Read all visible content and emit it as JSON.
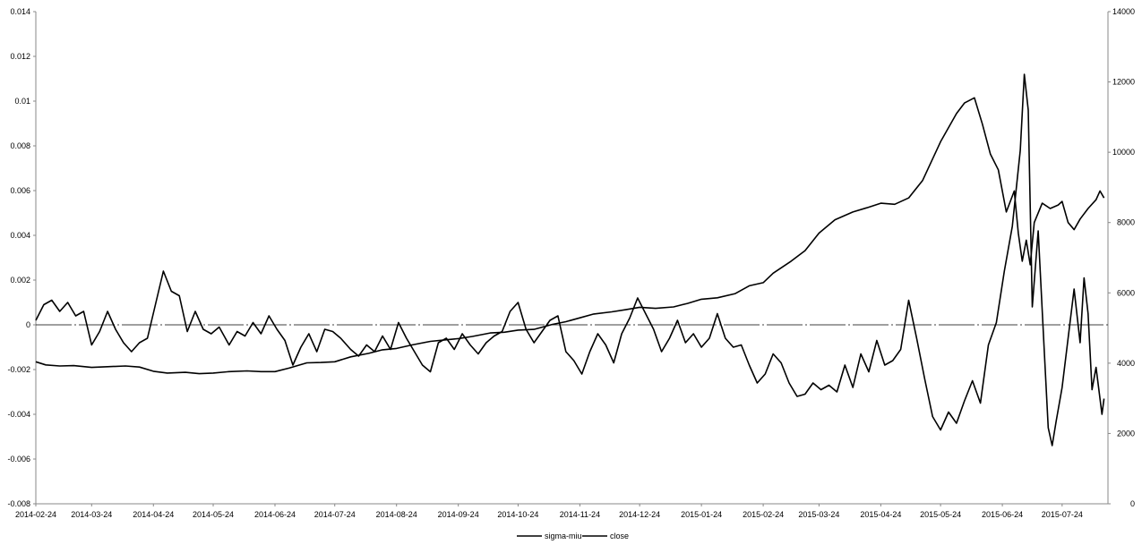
{
  "chart_data": {
    "type": "line",
    "title": "",
    "xlabel": "",
    "ylabel": "",
    "y_left_lim": [
      -0.008,
      0.014
    ],
    "y_left_ticks": [
      "-0.008",
      "-0.006",
      "-0.004",
      "-0.002",
      "0",
      "0.002",
      "0.004",
      "0.006",
      "0.008",
      "0.01",
      "0.012",
      "0.014"
    ],
    "y_right_lim": [
      0,
      14000
    ],
    "y_right_ticks": [
      "0",
      "2000",
      "4000",
      "6000",
      "8000",
      "10000",
      "12000",
      "14000"
    ],
    "x_ticks": [
      "2014-02-24",
      "2014-03-24",
      "2014-04-24",
      "2014-05-24",
      "2014-06-24",
      "2014-07-24",
      "2014-08-24",
      "2014-09-24",
      "2014-10-24",
      "2014-11-24",
      "2014-12-24",
      "2015-01-24",
      "2015-02-24",
      "2015-03-24",
      "2015-04-24",
      "2015-05-24",
      "2015-06-24",
      "2015-07-24"
    ],
    "grid": false,
    "legend_position": "bottom",
    "zero_line": true,
    "line_color": "#000000",
    "series": [
      {
        "name": "sigma-miu",
        "axis": "left",
        "points": [
          [
            "2014-02-24",
            0.0002
          ],
          [
            "2014-02-28",
            0.0009
          ],
          [
            "2014-03-04",
            0.0011
          ],
          [
            "2014-03-08",
            0.0006
          ],
          [
            "2014-03-12",
            0.001
          ],
          [
            "2014-03-16",
            0.0004
          ],
          [
            "2014-03-20",
            0.0006
          ],
          [
            "2014-03-24",
            -0.0009
          ],
          [
            "2014-03-28",
            -0.0003
          ],
          [
            "2014-04-01",
            0.0006
          ],
          [
            "2014-04-05",
            -0.0002
          ],
          [
            "2014-04-09",
            -0.0008
          ],
          [
            "2014-04-13",
            -0.0012
          ],
          [
            "2014-04-17",
            -0.0008
          ],
          [
            "2014-04-21",
            -0.0006
          ],
          [
            "2014-04-25",
            0.0009
          ],
          [
            "2014-04-29",
            0.0024
          ],
          [
            "2014-05-03",
            0.0015
          ],
          [
            "2014-05-07",
            0.0013
          ],
          [
            "2014-05-11",
            -0.0003
          ],
          [
            "2014-05-15",
            0.0006
          ],
          [
            "2014-05-19",
            -0.0002
          ],
          [
            "2014-05-23",
            -0.0004
          ],
          [
            "2014-05-27",
            -0.0001
          ],
          [
            "2014-06-01",
            -0.0009
          ],
          [
            "2014-06-05",
            -0.0003
          ],
          [
            "2014-06-09",
            -0.0005
          ],
          [
            "2014-06-13",
            0.0001
          ],
          [
            "2014-06-17",
            -0.0004
          ],
          [
            "2014-06-21",
            0.0004
          ],
          [
            "2014-06-25",
            -0.0002
          ],
          [
            "2014-06-29",
            -0.0007
          ],
          [
            "2014-07-03",
            -0.0018
          ],
          [
            "2014-07-07",
            -0.001
          ],
          [
            "2014-07-11",
            -0.0004
          ],
          [
            "2014-07-15",
            -0.0012
          ],
          [
            "2014-07-19",
            -0.0002
          ],
          [
            "2014-07-23",
            -0.0003
          ],
          [
            "2014-07-27",
            -0.0006
          ],
          [
            "2014-08-01",
            -0.0011
          ],
          [
            "2014-08-05",
            -0.0014
          ],
          [
            "2014-08-09",
            -0.0009
          ],
          [
            "2014-08-13",
            -0.0012
          ],
          [
            "2014-08-17",
            -0.0005
          ],
          [
            "2014-08-21",
            -0.0011
          ],
          [
            "2014-08-25",
            0.0001
          ],
          [
            "2014-08-29",
            -0.0006
          ],
          [
            "2014-09-02",
            -0.0012
          ],
          [
            "2014-09-06",
            -0.0018
          ],
          [
            "2014-09-10",
            -0.0021
          ],
          [
            "2014-09-14",
            -0.0008
          ],
          [
            "2014-09-18",
            -0.0006
          ],
          [
            "2014-09-22",
            -0.0011
          ],
          [
            "2014-09-26",
            -0.0004
          ],
          [
            "2014-09-30",
            -0.0009
          ],
          [
            "2014-10-04",
            -0.0013
          ],
          [
            "2014-10-08",
            -0.0008
          ],
          [
            "2014-10-12",
            -0.0005
          ],
          [
            "2014-10-16",
            -0.0003
          ],
          [
            "2014-10-20",
            0.0006
          ],
          [
            "2014-10-24",
            0.001
          ],
          [
            "2014-10-28",
            -0.0002
          ],
          [
            "2014-11-01",
            -0.0008
          ],
          [
            "2014-11-05",
            -0.0003
          ],
          [
            "2014-11-09",
            0.0002
          ],
          [
            "2014-11-13",
            0.0004
          ],
          [
            "2014-11-17",
            -0.0012
          ],
          [
            "2014-11-21",
            -0.0016
          ],
          [
            "2014-11-25",
            -0.0022
          ],
          [
            "2014-11-29",
            -0.0012
          ],
          [
            "2014-12-03",
            -0.0004
          ],
          [
            "2014-12-07",
            -0.0009
          ],
          [
            "2014-12-11",
            -0.0017
          ],
          [
            "2014-12-15",
            -0.0004
          ],
          [
            "2014-12-19",
            0.0003
          ],
          [
            "2014-12-23",
            0.0012
          ],
          [
            "2014-12-27",
            0.0005
          ],
          [
            "2014-12-31",
            -0.0002
          ],
          [
            "2015-01-04",
            -0.0012
          ],
          [
            "2015-01-08",
            -0.0006
          ],
          [
            "2015-01-12",
            0.0002
          ],
          [
            "2015-01-16",
            -0.0008
          ],
          [
            "2015-01-20",
            -0.0004
          ],
          [
            "2015-01-24",
            -0.001
          ],
          [
            "2015-01-28",
            -0.0006
          ],
          [
            "2015-02-01",
            0.0005
          ],
          [
            "2015-02-05",
            -0.0006
          ],
          [
            "2015-02-09",
            -0.001
          ],
          [
            "2015-02-13",
            -0.0009
          ],
          [
            "2015-02-17",
            -0.0018
          ],
          [
            "2015-02-21",
            -0.0026
          ],
          [
            "2015-02-25",
            -0.0022
          ],
          [
            "2015-03-01",
            -0.0013
          ],
          [
            "2015-03-05",
            -0.0017
          ],
          [
            "2015-03-09",
            -0.0026
          ],
          [
            "2015-03-13",
            -0.0032
          ],
          [
            "2015-03-17",
            -0.0031
          ],
          [
            "2015-03-21",
            -0.0026
          ],
          [
            "2015-03-25",
            -0.0029
          ],
          [
            "2015-03-29",
            -0.0027
          ],
          [
            "2015-04-02",
            -0.003
          ],
          [
            "2015-04-06",
            -0.0018
          ],
          [
            "2015-04-10",
            -0.0028
          ],
          [
            "2015-04-14",
            -0.0013
          ],
          [
            "2015-04-18",
            -0.0021
          ],
          [
            "2015-04-22",
            -0.0007
          ],
          [
            "2015-04-26",
            -0.0018
          ],
          [
            "2015-04-30",
            -0.0016
          ],
          [
            "2015-05-04",
            -0.0011
          ],
          [
            "2015-05-08",
            0.0011
          ],
          [
            "2015-05-12",
            -0.0006
          ],
          [
            "2015-05-16",
            -0.0024
          ],
          [
            "2015-05-20",
            -0.0041
          ],
          [
            "2015-05-24",
            -0.0047
          ],
          [
            "2015-05-28",
            -0.0039
          ],
          [
            "2015-06-01",
            -0.0044
          ],
          [
            "2015-06-05",
            -0.0034
          ],
          [
            "2015-06-09",
            -0.0025
          ],
          [
            "2015-06-13",
            -0.0035
          ],
          [
            "2015-06-17",
            -0.0009
          ],
          [
            "2015-06-21",
            0.0001
          ],
          [
            "2015-06-25",
            0.0024
          ],
          [
            "2015-06-29",
            0.0044
          ],
          [
            "2015-07-03",
            0.0078
          ],
          [
            "2015-07-05",
            0.0112
          ],
          [
            "2015-07-07",
            0.0096
          ],
          [
            "2015-07-09",
            0.0008
          ],
          [
            "2015-07-12",
            0.0042
          ],
          [
            "2015-07-15",
            -0.0011
          ],
          [
            "2015-07-17",
            -0.0046
          ],
          [
            "2015-07-19",
            -0.0054
          ],
          [
            "2015-07-21",
            -0.0043
          ],
          [
            "2015-07-24",
            -0.0028
          ],
          [
            "2015-07-27",
            -0.0006
          ],
          [
            "2015-07-30",
            0.0016
          ],
          [
            "2015-08-02",
            -0.0008
          ],
          [
            "2015-08-04",
            0.0021
          ],
          [
            "2015-08-06",
            0.0005
          ],
          [
            "2015-08-08",
            -0.0029
          ],
          [
            "2015-08-10",
            -0.0019
          ],
          [
            "2015-08-13",
            -0.004
          ],
          [
            "2015-08-14",
            -0.0033
          ]
        ]
      },
      {
        "name": "close",
        "axis": "right",
        "points": [
          [
            "2014-02-24",
            4040
          ],
          [
            "2014-03-01",
            3950
          ],
          [
            "2014-03-08",
            3920
          ],
          [
            "2014-03-15",
            3930
          ],
          [
            "2014-03-24",
            3880
          ],
          [
            "2014-04-01",
            3900
          ],
          [
            "2014-04-10",
            3920
          ],
          [
            "2014-04-17",
            3890
          ],
          [
            "2014-04-24",
            3770
          ],
          [
            "2014-05-01",
            3720
          ],
          [
            "2014-05-10",
            3740
          ],
          [
            "2014-05-17",
            3700
          ],
          [
            "2014-05-24",
            3720
          ],
          [
            "2014-06-01",
            3760
          ],
          [
            "2014-06-10",
            3780
          ],
          [
            "2014-06-17",
            3760
          ],
          [
            "2014-06-24",
            3760
          ],
          [
            "2014-07-01",
            3860
          ],
          [
            "2014-07-10",
            4010
          ],
          [
            "2014-07-17",
            4020
          ],
          [
            "2014-07-24",
            4040
          ],
          [
            "2014-08-01",
            4180
          ],
          [
            "2014-08-10",
            4280
          ],
          [
            "2014-08-17",
            4380
          ],
          [
            "2014-08-24",
            4420
          ],
          [
            "2014-09-01",
            4520
          ],
          [
            "2014-09-10",
            4620
          ],
          [
            "2014-09-17",
            4660
          ],
          [
            "2014-09-24",
            4700
          ],
          [
            "2014-10-01",
            4760
          ],
          [
            "2014-10-10",
            4860
          ],
          [
            "2014-10-17",
            4880
          ],
          [
            "2014-10-24",
            4940
          ],
          [
            "2014-11-01",
            4960
          ],
          [
            "2014-11-10",
            5100
          ],
          [
            "2014-11-17",
            5180
          ],
          [
            "2014-11-24",
            5290
          ],
          [
            "2014-12-01",
            5400
          ],
          [
            "2014-12-10",
            5460
          ],
          [
            "2014-12-17",
            5520
          ],
          [
            "2014-12-24",
            5590
          ],
          [
            "2015-01-01",
            5560
          ],
          [
            "2015-01-10",
            5600
          ],
          [
            "2015-01-17",
            5700
          ],
          [
            "2015-01-24",
            5820
          ],
          [
            "2015-02-01",
            5860
          ],
          [
            "2015-02-10",
            5980
          ],
          [
            "2015-02-17",
            6200
          ],
          [
            "2015-02-24",
            6290
          ],
          [
            "2015-03-01",
            6560
          ],
          [
            "2015-03-10",
            6900
          ],
          [
            "2015-03-17",
            7200
          ],
          [
            "2015-03-24",
            7700
          ],
          [
            "2015-04-01",
            8080
          ],
          [
            "2015-04-10",
            8300
          ],
          [
            "2015-04-17",
            8420
          ],
          [
            "2015-04-24",
            8550
          ],
          [
            "2015-05-01",
            8520
          ],
          [
            "2015-05-08",
            8700
          ],
          [
            "2015-05-15",
            9200
          ],
          [
            "2015-05-24",
            10300
          ],
          [
            "2015-06-01",
            11100
          ],
          [
            "2015-06-05",
            11400
          ],
          [
            "2015-06-10",
            11550
          ],
          [
            "2015-06-14",
            10800
          ],
          [
            "2015-06-18",
            9950
          ],
          [
            "2015-06-22",
            9500
          ],
          [
            "2015-06-26",
            8300
          ],
          [
            "2015-06-30",
            8900
          ],
          [
            "2015-07-02",
            7700
          ],
          [
            "2015-07-04",
            6900
          ],
          [
            "2015-07-06",
            7500
          ],
          [
            "2015-07-08",
            6800
          ],
          [
            "2015-07-10",
            8000
          ],
          [
            "2015-07-14",
            8550
          ],
          [
            "2015-07-18",
            8400
          ],
          [
            "2015-07-22",
            8500
          ],
          [
            "2015-07-24",
            8600
          ],
          [
            "2015-07-27",
            8000
          ],
          [
            "2015-07-30",
            7800
          ],
          [
            "2015-08-02",
            8100
          ],
          [
            "2015-08-06",
            8400
          ],
          [
            "2015-08-10",
            8650
          ],
          [
            "2015-08-12",
            8900
          ],
          [
            "2015-08-14",
            8700
          ]
        ]
      }
    ]
  }
}
